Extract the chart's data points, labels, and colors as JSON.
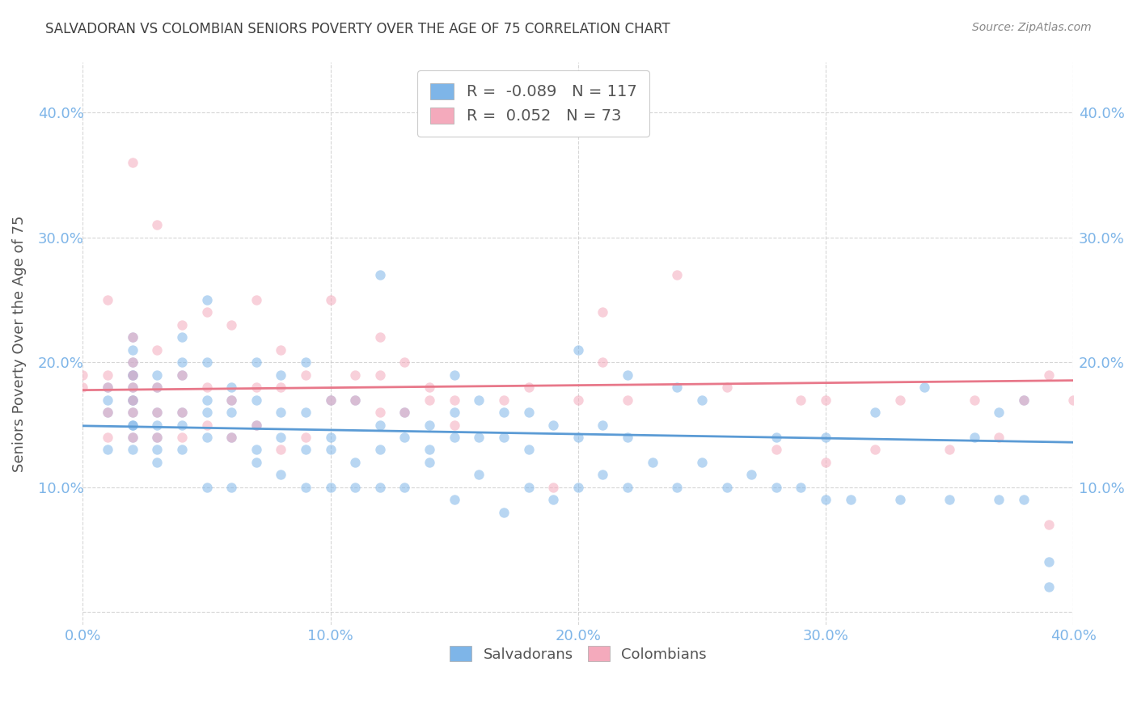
{
  "title": "SALVADORAN VS COLOMBIAN SENIORS POVERTY OVER THE AGE OF 75 CORRELATION CHART",
  "source": "Source: ZipAtlas.com",
  "xlabel": "",
  "ylabel": "Seniors Poverty Over the Age of 75",
  "xlim": [
    0.0,
    0.4
  ],
  "ylim": [
    -0.01,
    0.44
  ],
  "xticks": [
    0.0,
    0.1,
    0.2,
    0.3,
    0.4
  ],
  "yticks": [
    0.0,
    0.1,
    0.2,
    0.3,
    0.4
  ],
  "xtick_labels": [
    "0.0%",
    "10.0%",
    "20.0%",
    "30.0%",
    "40.0%"
  ],
  "ytick_labels": [
    "",
    "10.0%",
    "20.0%",
    "30.0%",
    "40.0%"
  ],
  "salvadoran_color": "#7EB5E8",
  "colombian_color": "#F4AABC",
  "salvadoran_line_color": "#5B9BD5",
  "colombian_line_color": "#E8788A",
  "R_salvadoran": -0.089,
  "N_salvadoran": 117,
  "R_colombian": 0.052,
  "N_colombian": 73,
  "legend_label_salv": "Salvadorans",
  "legend_label_col": "Colombians",
  "background_color": "#FFFFFF",
  "grid_color": "#CCCCCC",
  "title_color": "#404040",
  "axis_color": "#7EB5E8",
  "marker_size": 80,
  "marker_alpha": 0.55,
  "salvadoran_x": [
    0.01,
    0.01,
    0.01,
    0.01,
    0.02,
    0.02,
    0.02,
    0.02,
    0.02,
    0.02,
    0.02,
    0.02,
    0.02,
    0.02,
    0.02,
    0.02,
    0.02,
    0.03,
    0.03,
    0.03,
    0.03,
    0.03,
    0.03,
    0.03,
    0.04,
    0.04,
    0.04,
    0.04,
    0.04,
    0.04,
    0.05,
    0.05,
    0.05,
    0.05,
    0.05,
    0.05,
    0.06,
    0.06,
    0.06,
    0.06,
    0.06,
    0.07,
    0.07,
    0.07,
    0.07,
    0.07,
    0.08,
    0.08,
    0.08,
    0.08,
    0.09,
    0.09,
    0.09,
    0.09,
    0.1,
    0.1,
    0.1,
    0.1,
    0.11,
    0.11,
    0.11,
    0.12,
    0.12,
    0.12,
    0.12,
    0.13,
    0.13,
    0.13,
    0.14,
    0.14,
    0.14,
    0.15,
    0.15,
    0.15,
    0.15,
    0.16,
    0.16,
    0.16,
    0.17,
    0.17,
    0.17,
    0.18,
    0.18,
    0.18,
    0.19,
    0.19,
    0.2,
    0.2,
    0.2,
    0.21,
    0.21,
    0.22,
    0.22,
    0.22,
    0.23,
    0.24,
    0.24,
    0.25,
    0.25,
    0.26,
    0.27,
    0.28,
    0.28,
    0.29,
    0.3,
    0.3,
    0.31,
    0.32,
    0.33,
    0.34,
    0.35,
    0.36,
    0.37,
    0.37,
    0.38,
    0.38,
    0.39,
    0.39
  ],
  "salvadoran_y": [
    0.13,
    0.16,
    0.17,
    0.18,
    0.13,
    0.14,
    0.15,
    0.15,
    0.16,
    0.17,
    0.17,
    0.18,
    0.19,
    0.19,
    0.2,
    0.21,
    0.22,
    0.12,
    0.13,
    0.14,
    0.15,
    0.16,
    0.18,
    0.19,
    0.13,
    0.15,
    0.16,
    0.19,
    0.2,
    0.22,
    0.1,
    0.14,
    0.16,
    0.17,
    0.2,
    0.25,
    0.1,
    0.14,
    0.16,
    0.17,
    0.18,
    0.12,
    0.13,
    0.15,
    0.17,
    0.2,
    0.11,
    0.14,
    0.16,
    0.19,
    0.1,
    0.13,
    0.16,
    0.2,
    0.1,
    0.13,
    0.14,
    0.17,
    0.1,
    0.12,
    0.17,
    0.1,
    0.13,
    0.15,
    0.27,
    0.1,
    0.14,
    0.16,
    0.12,
    0.13,
    0.15,
    0.09,
    0.14,
    0.16,
    0.19,
    0.11,
    0.14,
    0.17,
    0.08,
    0.14,
    0.16,
    0.1,
    0.13,
    0.16,
    0.09,
    0.15,
    0.1,
    0.14,
    0.21,
    0.11,
    0.15,
    0.1,
    0.14,
    0.19,
    0.12,
    0.1,
    0.18,
    0.12,
    0.17,
    0.1,
    0.11,
    0.1,
    0.14,
    0.1,
    0.09,
    0.14,
    0.09,
    0.16,
    0.09,
    0.18,
    0.09,
    0.14,
    0.09,
    0.16,
    0.09,
    0.17,
    0.02,
    0.04
  ],
  "colombian_x": [
    0.0,
    0.0,
    0.01,
    0.01,
    0.01,
    0.01,
    0.01,
    0.02,
    0.02,
    0.02,
    0.02,
    0.02,
    0.02,
    0.02,
    0.02,
    0.03,
    0.03,
    0.03,
    0.03,
    0.03,
    0.04,
    0.04,
    0.04,
    0.04,
    0.05,
    0.05,
    0.05,
    0.06,
    0.06,
    0.06,
    0.07,
    0.07,
    0.07,
    0.08,
    0.08,
    0.08,
    0.09,
    0.09,
    0.1,
    0.1,
    0.11,
    0.11,
    0.12,
    0.12,
    0.12,
    0.13,
    0.13,
    0.14,
    0.14,
    0.15,
    0.15,
    0.17,
    0.18,
    0.19,
    0.2,
    0.21,
    0.21,
    0.22,
    0.24,
    0.26,
    0.28,
    0.29,
    0.3,
    0.3,
    0.32,
    0.33,
    0.35,
    0.36,
    0.37,
    0.38,
    0.39,
    0.39,
    0.4
  ],
  "colombian_y": [
    0.18,
    0.19,
    0.14,
    0.16,
    0.18,
    0.19,
    0.25,
    0.14,
    0.16,
    0.17,
    0.18,
    0.19,
    0.2,
    0.22,
    0.36,
    0.14,
    0.16,
    0.18,
    0.21,
    0.31,
    0.14,
    0.16,
    0.19,
    0.23,
    0.15,
    0.18,
    0.24,
    0.14,
    0.17,
    0.23,
    0.15,
    0.18,
    0.25,
    0.13,
    0.18,
    0.21,
    0.14,
    0.19,
    0.17,
    0.25,
    0.17,
    0.19,
    0.16,
    0.19,
    0.22,
    0.16,
    0.2,
    0.17,
    0.18,
    0.15,
    0.17,
    0.17,
    0.18,
    0.1,
    0.17,
    0.2,
    0.24,
    0.17,
    0.27,
    0.18,
    0.13,
    0.17,
    0.12,
    0.17,
    0.13,
    0.17,
    0.13,
    0.17,
    0.14,
    0.17,
    0.07,
    0.19,
    0.17
  ]
}
